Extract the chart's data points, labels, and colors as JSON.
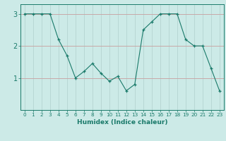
{
  "x": [
    0,
    1,
    2,
    3,
    4,
    5,
    6,
    7,
    8,
    9,
    10,
    11,
    12,
    13,
    14,
    15,
    16,
    17,
    18,
    19,
    20,
    21,
    22,
    23
  ],
  "y": [
    3.0,
    3.0,
    3.0,
    3.0,
    2.2,
    1.7,
    1.0,
    1.2,
    1.45,
    1.15,
    0.9,
    1.05,
    0.6,
    0.8,
    2.5,
    2.75,
    3.0,
    3.0,
    3.0,
    2.2,
    2.0,
    2.0,
    1.3,
    0.6
  ],
  "line_color": "#1a7a6a",
  "marker": "+",
  "bg_color": "#cceae7",
  "grid_major_color": "#b0d0cc",
  "grid_minor_color": "#d8efec",
  "axis_color": "#1a7a6a",
  "xlabel": "Humidex (Indice chaleur)",
  "ylim": [
    0.0,
    3.3
  ],
  "xlim": [
    -0.5,
    23.5
  ],
  "yticks": [
    1,
    2,
    3
  ],
  "xtick_labels": [
    "0",
    "1",
    "2",
    "3",
    "4",
    "5",
    "6",
    "7",
    "8",
    "9",
    "10",
    "11",
    "12",
    "13",
    "14",
    "15",
    "16",
    "17",
    "18",
    "19",
    "20",
    "21",
    "22",
    "23"
  ]
}
